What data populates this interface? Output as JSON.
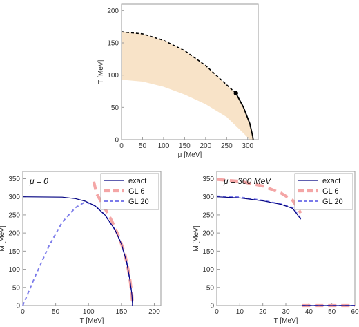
{
  "chart_data": [
    {
      "type": "area",
      "xlabel": "μ [MeV]",
      "ylabel": "T [MeV]",
      "xlim": [
        0,
        325
      ],
      "ylim": [
        0,
        210
      ],
      "xticks": [
        0,
        50,
        100,
        150,
        200,
        250,
        300
      ],
      "yticks": [
        0,
        50,
        100,
        150,
        200
      ],
      "band_upper": [
        [
          0,
          167
        ],
        [
          50,
          164
        ],
        [
          100,
          154
        ],
        [
          150,
          138
        ],
        [
          200,
          115
        ],
        [
          250,
          85
        ],
        [
          272,
          72
        ],
        [
          300,
          35
        ],
        [
          315,
          0
        ]
      ],
      "band_lower": [
        [
          0,
          93
        ],
        [
          50,
          90
        ],
        [
          100,
          82
        ],
        [
          150,
          70
        ],
        [
          200,
          55
        ],
        [
          250,
          35
        ],
        [
          290,
          10
        ],
        [
          305,
          0
        ]
      ],
      "dashed_line": [
        [
          0,
          167
        ],
        [
          50,
          164
        ],
        [
          100,
          154
        ],
        [
          150,
          138
        ],
        [
          200,
          115
        ],
        [
          250,
          85
        ],
        [
          272,
          72
        ]
      ],
      "solid_line": [
        [
          272,
          72
        ],
        [
          290,
          50
        ],
        [
          305,
          25
        ],
        [
          312,
          5
        ],
        [
          313,
          0
        ]
      ],
      "critical_point": [
        272,
        72
      ],
      "colors": {
        "band": "#f8e3c8",
        "line": "#000000"
      }
    },
    {
      "type": "line",
      "annotation": "μ = 0",
      "xlabel": "T [MeV]",
      "ylabel": "M [MeV]",
      "xlim": [
        0,
        210
      ],
      "ylim": [
        0,
        370
      ],
      "xticks": [
        0,
        50,
        100,
        150,
        200
      ],
      "yticks": [
        0,
        50,
        100,
        150,
        200,
        250,
        300,
        350
      ],
      "vline_x": 93,
      "series": [
        {
          "name": "exact",
          "color": "#000080",
          "dash": "solid",
          "points": [
            [
              0,
              300
            ],
            [
              60,
              299
            ],
            [
              80,
              295
            ],
            [
              95,
              288
            ],
            [
              110,
              275
            ],
            [
              125,
              250
            ],
            [
              140,
              210
            ],
            [
              150,
              170
            ],
            [
              158,
              120
            ],
            [
              163,
              70
            ],
            [
              166,
              30
            ],
            [
              167,
              0
            ]
          ]
        },
        {
          "name": "GL 6",
          "color": "#f4a6a6",
          "dash": "long",
          "points": [
            [
              108,
              342
            ],
            [
              112,
              310
            ],
            [
              118,
              290
            ],
            [
              125,
              268
            ],
            [
              135,
              235
            ],
            [
              145,
              195
            ],
            [
              155,
              145
            ],
            [
              162,
              85
            ],
            [
              166,
              30
            ],
            [
              167,
              0
            ]
          ]
        },
        {
          "name": "GL 20",
          "color": "#7b7bea",
          "dash": "short",
          "points": [
            [
              0,
              0
            ],
            [
              20,
              85
            ],
            [
              40,
              165
            ],
            [
              60,
              230
            ],
            [
              80,
              270
            ],
            [
              95,
              286
            ],
            [
              110,
              275
            ],
            [
              125,
              250
            ],
            [
              140,
              210
            ],
            [
              150,
              170
            ],
            [
              158,
              120
            ],
            [
              163,
              70
            ],
            [
              166,
              30
            ],
            [
              167,
              0
            ]
          ]
        }
      ]
    },
    {
      "type": "line",
      "annotation": "μ = 300 MeV",
      "xlabel": "T [MeV]",
      "ylabel": "M [MeV]",
      "xlim": [
        0,
        60
      ],
      "ylim": [
        0,
        370
      ],
      "xticks": [
        0,
        10,
        20,
        30,
        40,
        50,
        60
      ],
      "yticks": [
        0,
        50,
        100,
        150,
        200,
        250,
        300,
        350
      ],
      "series": [
        {
          "name": "exact",
          "color": "#000080",
          "dash": "solid",
          "points": [
            [
              0,
              300
            ],
            [
              10,
              297
            ],
            [
              20,
              289
            ],
            [
              28,
              279
            ],
            [
              33,
              268
            ],
            [
              36.5,
              238
            ]
          ],
          "points2": [
            [
              37,
              0
            ],
            [
              60,
              0
            ]
          ]
        },
        {
          "name": "GL 6",
          "color": "#f4a6a6",
          "dash": "long",
          "points": [
            [
              0,
              348
            ],
            [
              10,
              343
            ],
            [
              20,
              330
            ],
            [
              28,
              310
            ],
            [
              33,
              290
            ],
            [
              36.5,
              255
            ]
          ],
          "points2": [
            [
              37,
              0
            ],
            [
              60,
              0
            ]
          ]
        },
        {
          "name": "GL 20",
          "color": "#7b7bea",
          "dash": "short",
          "points": [
            [
              0,
              302
            ],
            [
              10,
              299
            ],
            [
              20,
              290
            ],
            [
              28,
              280
            ],
            [
              33,
              270
            ],
            [
              36.5,
              240
            ]
          ],
          "points2": [
            [
              37,
              0
            ],
            [
              60,
              0
            ]
          ]
        }
      ]
    }
  ]
}
